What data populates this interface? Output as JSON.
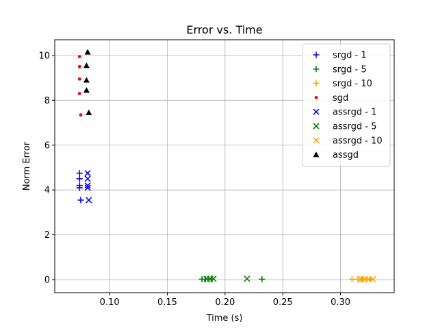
{
  "chart_data": {
    "type": "scatter",
    "title": "Error vs. Time",
    "xlabel": "Time (s)",
    "ylabel": "Norm Error",
    "xlim": [
      0.0525,
      0.3465
    ],
    "ylim": [
      -0.58,
      10.7
    ],
    "xticks": [
      0.1,
      0.15,
      0.2,
      0.25,
      0.3
    ],
    "xtick_labels": [
      "0.10",
      "0.15",
      "0.20",
      "0.25",
      "0.30"
    ],
    "yticks": [
      0,
      2,
      4,
      6,
      8,
      10
    ],
    "ytick_labels": [
      "0",
      "2",
      "4",
      "6",
      "8",
      "10"
    ],
    "grid": true,
    "legend_position": "top-right",
    "series": [
      {
        "name": "srgd - 1",
        "marker": "plus",
        "color": "#0000ff",
        "x": [
          0.074,
          0.074,
          0.074,
          0.074,
          0.075
        ],
        "y": [
          4.75,
          4.5,
          4.2,
          4.1,
          3.55
        ]
      },
      {
        "name": "srgd - 5",
        "marker": "plus",
        "color": "#008000",
        "x": [
          0.18,
          0.183,
          0.186,
          0.188,
          0.232
        ],
        "y": [
          0.02,
          0.02,
          0.02,
          0.02,
          0.02
        ]
      },
      {
        "name": "srgd - 10",
        "marker": "plus",
        "color": "#ffa500",
        "x": [
          0.31,
          0.315,
          0.318,
          0.322,
          0.326
        ],
        "y": [
          0.02,
          0.02,
          0.02,
          0.02,
          0.02
        ]
      },
      {
        "name": "sgd",
        "marker": "dot",
        "color": "#ff0000",
        "x": [
          0.074,
          0.074,
          0.074,
          0.074,
          0.075
        ],
        "y": [
          9.95,
          9.5,
          8.95,
          8.3,
          7.35
        ]
      },
      {
        "name": "assrgd - 1",
        "marker": "x",
        "color": "#0000ff",
        "x": [
          0.081,
          0.081,
          0.081,
          0.081,
          0.082
        ],
        "y": [
          4.75,
          4.5,
          4.2,
          4.1,
          3.55
        ]
      },
      {
        "name": "assrgd - 5",
        "marker": "x",
        "color": "#008000",
        "x": [
          0.184,
          0.187,
          0.19,
          0.219
        ],
        "y": [
          0.04,
          0.04,
          0.04,
          0.04
        ]
      },
      {
        "name": "assrgd - 10",
        "marker": "x",
        "color": "#ffa500",
        "x": [
          0.318,
          0.321,
          0.324,
          0.328
        ],
        "y": [
          0.02,
          0.02,
          0.02,
          0.02
        ]
      },
      {
        "name": "assgd",
        "marker": "triangle",
        "color": "#000000",
        "x": [
          0.081,
          0.08,
          0.08,
          0.08,
          0.082
        ],
        "y": [
          10.15,
          9.55,
          8.9,
          8.45,
          7.45
        ]
      }
    ]
  }
}
